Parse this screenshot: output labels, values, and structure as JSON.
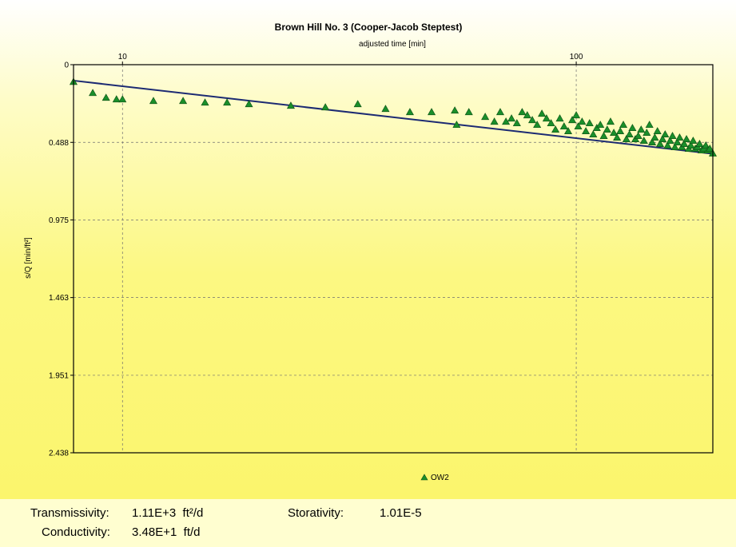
{
  "chart_data": {
    "type": "scatter",
    "title": "Brown Hill No. 3 (Cooper-Jacob Steptest)",
    "xlabel": "adjusted time [min]",
    "ylabel": "s/Q [min/ft²]",
    "x_scale": "log",
    "x_axis_position": "top",
    "y_inverted": true,
    "xlim": [
      7.8,
      200
    ],
    "ylim": [
      0,
      2.438
    ],
    "x_ticks": [
      10,
      100
    ],
    "x_tick_labels": [
      "10",
      "100"
    ],
    "y_ticks": [
      0,
      0.488,
      0.975,
      1.463,
      1.951,
      2.438
    ],
    "y_tick_labels": [
      "0",
      "0.488",
      "0.975",
      "1.463",
      "1.951",
      "2.438"
    ],
    "grid": true,
    "legend_position": "bottom",
    "series": [
      {
        "name": "OW2",
        "marker": "triangle",
        "color": "#1a8f2a",
        "points": [
          [
            7.8,
            0.11
          ],
          [
            8.6,
            0.18
          ],
          [
            9.2,
            0.21
          ],
          [
            9.7,
            0.22
          ],
          [
            10.0,
            0.22
          ],
          [
            11.7,
            0.23
          ],
          [
            13.6,
            0.23
          ],
          [
            15.2,
            0.24
          ],
          [
            17.0,
            0.24
          ],
          [
            19.0,
            0.25
          ],
          [
            23.5,
            0.26
          ],
          [
            28.0,
            0.27
          ],
          [
            33.0,
            0.25
          ],
          [
            38.0,
            0.28
          ],
          [
            43.0,
            0.3
          ],
          [
            48.0,
            0.3
          ],
          [
            54.0,
            0.29
          ],
          [
            54.5,
            0.38
          ],
          [
            58.0,
            0.3
          ],
          [
            63.0,
            0.33
          ],
          [
            66.0,
            0.36
          ],
          [
            68.0,
            0.3
          ],
          [
            70.0,
            0.36
          ],
          [
            72.0,
            0.34
          ],
          [
            74.0,
            0.37
          ],
          [
            76.0,
            0.3
          ],
          [
            78.0,
            0.32
          ],
          [
            80.0,
            0.35
          ],
          [
            82.0,
            0.38
          ],
          [
            84.0,
            0.31
          ],
          [
            86.0,
            0.34
          ],
          [
            88.0,
            0.37
          ],
          [
            90.0,
            0.41
          ],
          [
            92.0,
            0.34
          ],
          [
            94.0,
            0.39
          ],
          [
            96.0,
            0.42
          ],
          [
            98.0,
            0.35
          ],
          [
            100.0,
            0.32
          ],
          [
            101.0,
            0.39
          ],
          [
            103.0,
            0.36
          ],
          [
            105.0,
            0.42
          ],
          [
            107.0,
            0.37
          ],
          [
            109.0,
            0.44
          ],
          [
            111.0,
            0.4
          ],
          [
            113.0,
            0.38
          ],
          [
            115.0,
            0.45
          ],
          [
            117.0,
            0.41
          ],
          [
            119.0,
            0.36
          ],
          [
            121.0,
            0.43
          ],
          [
            123.0,
            0.46
          ],
          [
            125.0,
            0.42
          ],
          [
            127.0,
            0.38
          ],
          [
            129.0,
            0.47
          ],
          [
            131.0,
            0.44
          ],
          [
            133.0,
            0.4
          ],
          [
            135.0,
            0.47
          ],
          [
            137.0,
            0.45
          ],
          [
            139.0,
            0.41
          ],
          [
            141.0,
            0.48
          ],
          [
            143.0,
            0.43
          ],
          [
            145.0,
            0.38
          ],
          [
            147.0,
            0.49
          ],
          [
            149.0,
            0.46
          ],
          [
            151.0,
            0.42
          ],
          [
            153.0,
            0.5
          ],
          [
            155.0,
            0.47
          ],
          [
            157.0,
            0.44
          ],
          [
            159.0,
            0.51
          ],
          [
            161.0,
            0.48
          ],
          [
            163.0,
            0.45
          ],
          [
            165.0,
            0.52
          ],
          [
            167.0,
            0.49
          ],
          [
            169.0,
            0.46
          ],
          [
            171.0,
            0.52
          ],
          [
            173.0,
            0.5
          ],
          [
            175.0,
            0.47
          ],
          [
            177.0,
            0.53
          ],
          [
            179.0,
            0.51
          ],
          [
            181.0,
            0.48
          ],
          [
            183.0,
            0.53
          ],
          [
            185.0,
            0.52
          ],
          [
            187.0,
            0.5
          ],
          [
            189.0,
            0.54
          ],
          [
            191.0,
            0.53
          ],
          [
            193.0,
            0.51
          ],
          [
            195.0,
            0.54
          ],
          [
            197.0,
            0.53
          ],
          [
            200.0,
            0.56
          ]
        ]
      }
    ],
    "fit_line": {
      "x": [
        7.8,
        200
      ],
      "y": [
        0.1,
        0.56
      ],
      "color": "#1c2a72"
    }
  },
  "results": {
    "transmissivity": {
      "label": "Transmissivity:",
      "value": "1.11E+3",
      "unit": "ft²/d"
    },
    "conductivity": {
      "label": "Conductivity:",
      "value": "3.48E+1",
      "unit": "ft/d"
    },
    "storativity": {
      "label": "Storativity:",
      "value": "1.01E-5",
      "unit": ""
    }
  }
}
